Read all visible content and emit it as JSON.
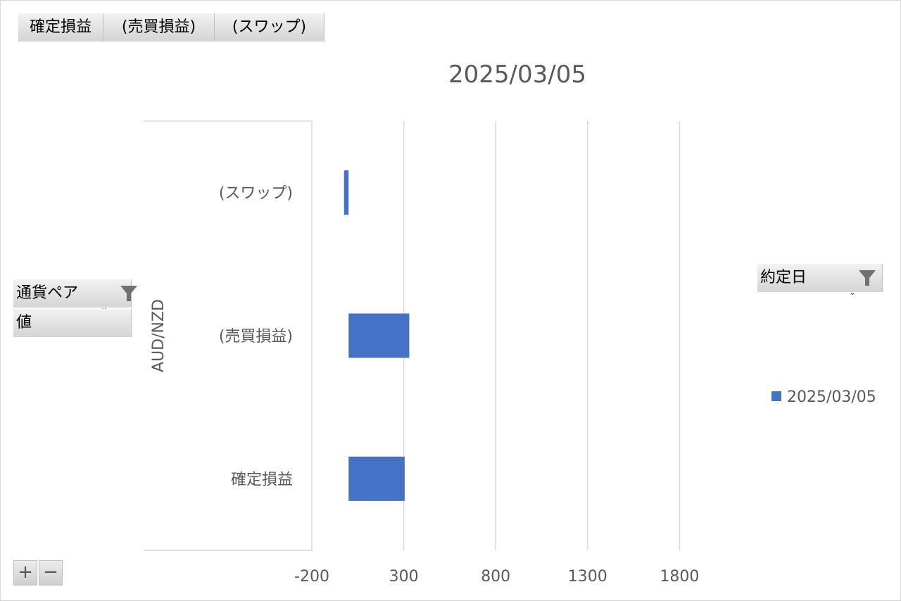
{
  "pivot": {
    "value_fields": [
      "確定損益",
      "(売買損益)",
      "(スワップ)"
    ],
    "row_field": "通貨ペア",
    "values_field": "値",
    "legend_field": "約定日"
  },
  "chart_data": {
    "type": "bar",
    "orientation": "horizontal",
    "title": "2025/03/05",
    "group_label": "AUD/NZD",
    "categories": [
      "確定損益",
      "(売買損益)",
      "(スワップ)"
    ],
    "series": [
      {
        "name": "2025/03/05",
        "color": "#4472c4",
        "values": [
          305,
          330,
          -25
        ]
      }
    ],
    "xlim": [
      -200,
      2300
    ],
    "xticks": [
      -200,
      300,
      800,
      1300,
      1800
    ],
    "grid": true,
    "legend_position": "right"
  },
  "controls": {
    "expand": "+",
    "collapse": "−"
  }
}
